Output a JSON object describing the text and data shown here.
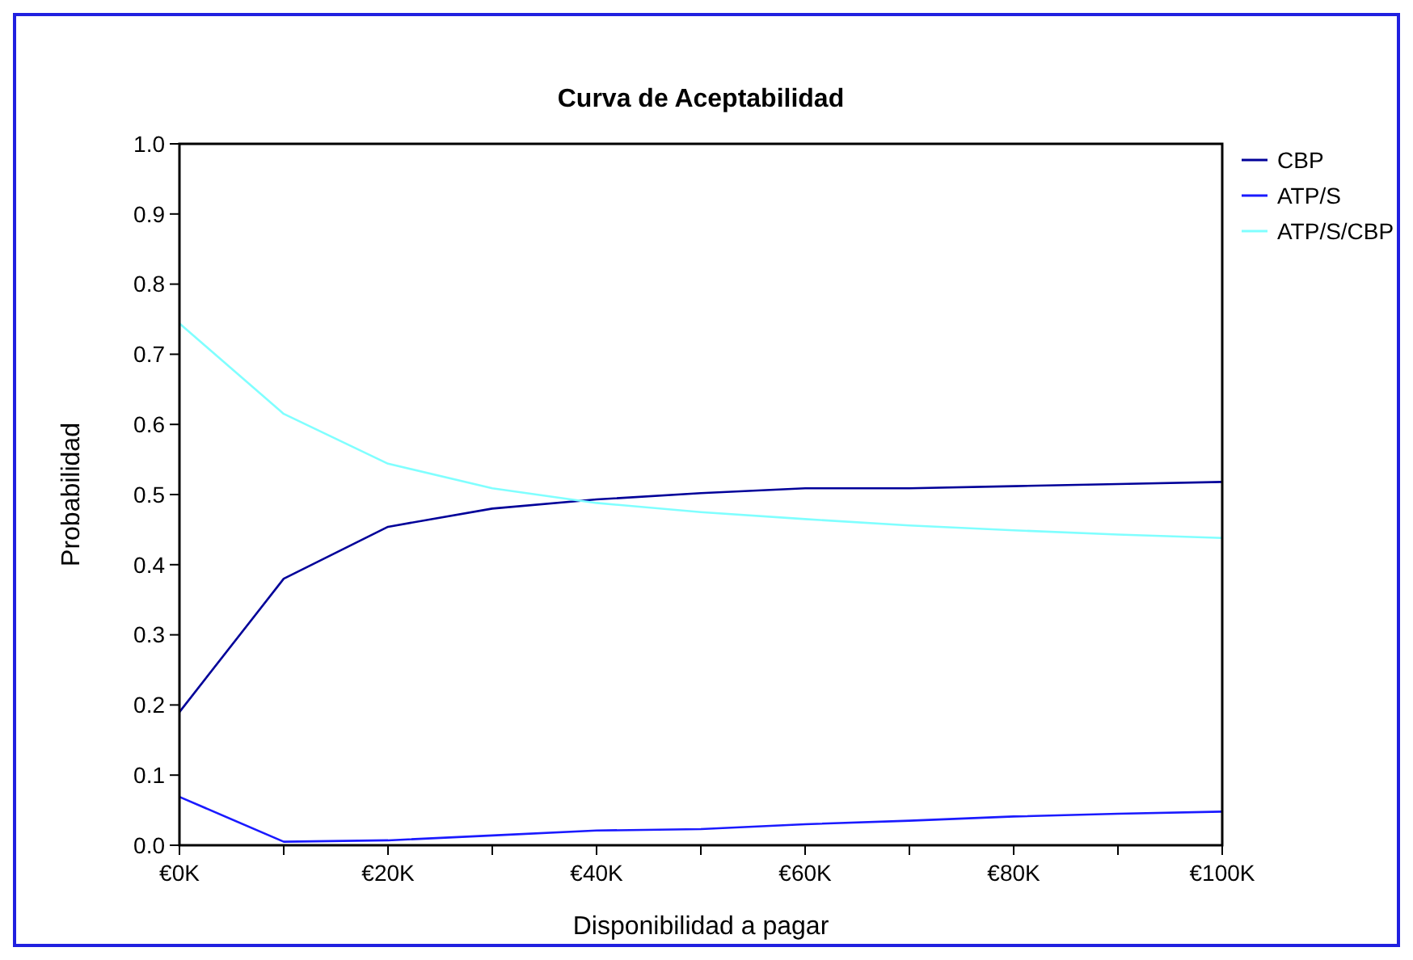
{
  "chart_data": {
    "type": "line",
    "title": "Curva de Aceptabilidad",
    "xlabel": "Disponibilidad a pagar",
    "ylabel": "Probabilidad",
    "x": [
      0,
      10,
      20,
      30,
      40,
      50,
      60,
      70,
      80,
      90,
      100
    ],
    "xlim": [
      0,
      100
    ],
    "xticks": [
      {
        "value": 0,
        "label": "€0K"
      },
      {
        "value": 10,
        "label": null
      },
      {
        "value": 20,
        "label": "€20K"
      },
      {
        "value": 30,
        "label": null
      },
      {
        "value": 40,
        "label": "€40K"
      },
      {
        "value": 50,
        "label": null
      },
      {
        "value": 60,
        "label": "€60K"
      },
      {
        "value": 70,
        "label": null
      },
      {
        "value": 80,
        "label": "€80K"
      },
      {
        "value": 90,
        "label": null
      },
      {
        "value": 100,
        "label": "€100K"
      }
    ],
    "ylim": [
      0,
      1
    ],
    "yticks": [
      {
        "value": 0,
        "label": "0.0"
      },
      0.1,
      0.2,
      0.3,
      0.4,
      0.5,
      0.6,
      0.7,
      0.8,
      0.9,
      {
        "value": 1,
        "label": "1.0"
      }
    ],
    "series": [
      {
        "name": "CBP",
        "color": "#000099",
        "values": [
          0.19,
          0.38,
          0.454,
          0.48,
          0.493,
          0.502,
          0.509,
          0.509,
          0.512,
          0.515,
          0.518
        ]
      },
      {
        "name": "ATP/S",
        "color": "#1a1aff",
        "values": [
          0.069,
          0.005,
          0.007,
          0.014,
          0.021,
          0.023,
          0.03,
          0.035,
          0.041,
          0.045,
          0.048
        ]
      },
      {
        "name": "ATP/S/CBP",
        "color": "#80ffff",
        "values": [
          0.744,
          0.615,
          0.544,
          0.509,
          0.488,
          0.475,
          0.465,
          0.456,
          0.449,
          0.443,
          0.438
        ]
      }
    ],
    "legend": "top right",
    "grid": false,
    "marker": "none",
    "line_style": "solid"
  }
}
